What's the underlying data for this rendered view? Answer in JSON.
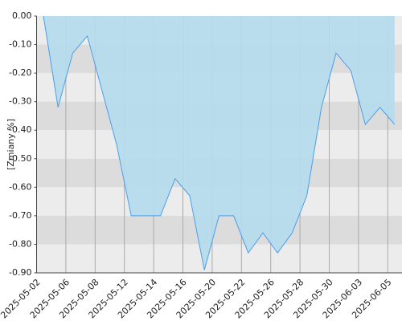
{
  "chart_data": {
    "type": "area",
    "y_label": "[Zmiany %]",
    "values": [
      0.0,
      -0.32,
      -0.13,
      -0.07,
      -0.26,
      -0.45,
      -0.7,
      -0.7,
      -0.7,
      -0.57,
      -0.63,
      -0.89,
      -0.7,
      -0.7,
      -0.83,
      -0.76,
      -0.83,
      -0.76,
      -0.63,
      -0.32,
      -0.13,
      -0.19,
      -0.38,
      -0.32,
      -0.38
    ],
    "color": "#4a9fe8",
    "fill": "#b5dcee",
    "ylim": [
      -0.9,
      0
    ],
    "yticks": [
      {
        "value": 0,
        "label": "0.00"
      },
      {
        "value": -0.1,
        "label": "-0.10"
      },
      {
        "value": -0.2,
        "label": "-0.20"
      },
      {
        "value": -0.3,
        "label": "-0.30"
      },
      {
        "value": -0.4,
        "label": "-0.40"
      },
      {
        "value": -0.5,
        "label": "-0.50"
      },
      {
        "value": -0.6,
        "label": "-0.60"
      },
      {
        "value": -0.7,
        "label": "-0.70"
      },
      {
        "value": -0.8,
        "label": "-0.80"
      },
      {
        "value": -0.9,
        "label": "-0.90"
      }
    ],
    "xticks": [
      "2025-05-02",
      "2025-05-06",
      "2025-05-08",
      "2025-05-12",
      "2025-05-14",
      "2025-05-16",
      "2025-05-20",
      "2025-05-22",
      "2025-05-26",
      "2025-05-28",
      "2025-05-30",
      "2025-06-03",
      "2025-06-05"
    ],
    "grid": true
  }
}
